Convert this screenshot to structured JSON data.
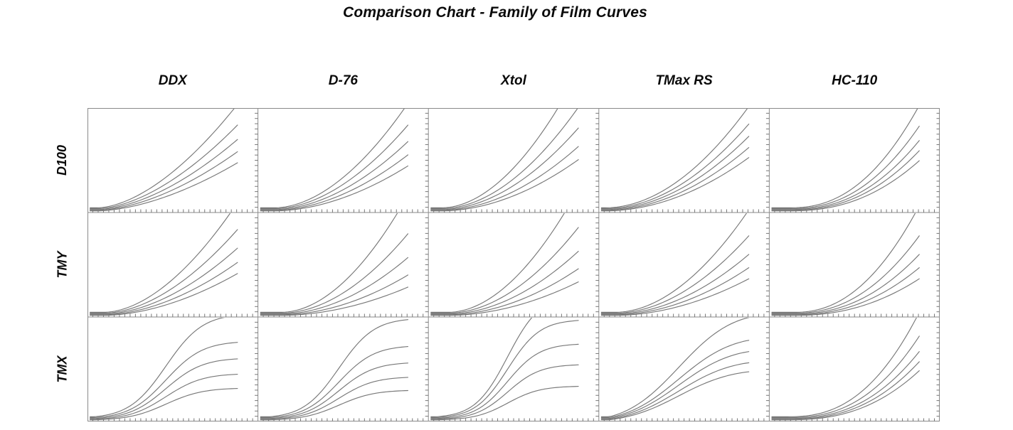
{
  "page": {
    "background": "#ffffff",
    "colors": {
      "text": "#0a0a0a",
      "frame": "#8a8a8a",
      "tick": "#777777",
      "curve": "#787878"
    }
  },
  "chart_data": {
    "type": "line",
    "title": "Comparison Chart - Family of Film Curves",
    "xlabel": "",
    "ylabel": "",
    "legend": "none",
    "description": "5x3 small-multiples grid of film characteristic curves (density vs. log exposure). Columns are developers, rows are films. Each cell shows 5 development-time curves fanning out from a common toe at lower left. Axes have unlabeled tick marks on the bottom and right edges of every cell.",
    "grid": {
      "cols": [
        "DDX",
        "D-76",
        "Xtol",
        "TMax RS",
        "HC-110"
      ],
      "rows": [
        "D100",
        "TMY",
        "TMX"
      ]
    },
    "layout": {
      "cell_cols": 5,
      "cell_rows": 3,
      "bottom_ticks_per_cell": 32,
      "right_ticks_per_cell": 20,
      "tick_len": 4.5,
      "x_start": 0.015,
      "x_end": 0.88,
      "start_density": [
        0.045,
        0.037,
        0.029,
        0.022,
        0.016
      ],
      "samples": 48
    },
    "cells": [
      {
        "film": "D100",
        "developer": "DDX",
        "shape": "power",
        "p": 1.7,
        "toe": 0.06,
        "lin": 0,
        "ends": [
          0.99,
          0.8,
          0.67,
          0.56,
          0.46
        ]
      },
      {
        "film": "D100",
        "developer": "D-76",
        "shape": "power",
        "p": 1.85,
        "toe": 0.1,
        "lin": 0,
        "ends": [
          1.0,
          0.8,
          0.65,
          0.53,
          0.43
        ]
      },
      {
        "film": "D100",
        "developer": "Xtol",
        "shape": "power",
        "p": 1.9,
        "toe": 0.08,
        "lin": 0,
        "ends": [
          1.3,
          0.97,
          0.78,
          0.61,
          0.49
        ]
      },
      {
        "film": "D100",
        "developer": "TMax RS",
        "shape": "power",
        "p": 1.95,
        "toe": 0.04,
        "lin": 0,
        "ends": [
          0.97,
          0.81,
          0.7,
          0.6,
          0.51
        ]
      },
      {
        "film": "D100",
        "developer": "HC-110",
        "shape": "power",
        "p": 2.3,
        "toe": 0.12,
        "lin": 0,
        "ends": [
          0.98,
          0.79,
          0.66,
          0.57,
          0.48
        ]
      },
      {
        "film": "TMY",
        "developer": "DDX",
        "shape": "power",
        "p": 1.8,
        "toe": 0.1,
        "lin": 0,
        "ends": [
          1.05,
          0.8,
          0.63,
          0.5,
          0.4
        ]
      },
      {
        "film": "TMY",
        "developer": "D-76",
        "shape": "power",
        "p": 1.9,
        "toe": 0.14,
        "lin": 0,
        "ends": [
          1.12,
          0.76,
          0.54,
          0.38,
          0.27
        ]
      },
      {
        "film": "TMY",
        "developer": "Xtol",
        "shape": "power",
        "p": 1.9,
        "toe": 0.12,
        "lin": 0,
        "ends": [
          1.18,
          0.82,
          0.6,
          0.44,
          0.32
        ]
      },
      {
        "film": "TMY",
        "developer": "TMax RS",
        "shape": "power",
        "p": 1.9,
        "toe": 0.1,
        "lin": 0,
        "ends": [
          0.98,
          0.74,
          0.57,
          0.45,
          0.35
        ]
      },
      {
        "film": "TMY",
        "developer": "HC-110",
        "shape": "power",
        "p": 2.2,
        "toe": 0.15,
        "lin": 0,
        "ends": [
          1.02,
          0.74,
          0.57,
          0.45,
          0.35
        ]
      },
      {
        "film": "TMX",
        "developer": "DDX",
        "shape": "scurve",
        "p": 2.2,
        "toe": 0.04,
        "lin": 0.15,
        "ends": [
          0.97,
          0.72,
          0.57,
          0.43,
          0.3
        ]
      },
      {
        "film": "TMX",
        "developer": "D-76",
        "shape": "scurve",
        "p": 2.2,
        "toe": 0.07,
        "lin": 0.15,
        "ends": [
          0.93,
          0.68,
          0.53,
          0.4,
          0.28
        ]
      },
      {
        "film": "TMX",
        "developer": "Xtol",
        "shape": "scurve",
        "p": 2.4,
        "toe": 0.05,
        "lin": 0.12,
        "ends": [
          1.15,
          0.93,
          0.71,
          0.52,
          0.32
        ]
      },
      {
        "film": "TMX",
        "developer": "TMax RS",
        "shape": "scurve",
        "p": 1.7,
        "toe": 0.06,
        "lin": 0.3,
        "ends": [
          0.95,
          0.74,
          0.64,
          0.54,
          0.46
        ]
      },
      {
        "film": "TMX",
        "developer": "HC-110",
        "shape": "power",
        "p": 2.5,
        "toe": 0.1,
        "lin": 0,
        "ends": [
          1.0,
          0.78,
          0.64,
          0.55,
          0.47
        ]
      }
    ]
  }
}
